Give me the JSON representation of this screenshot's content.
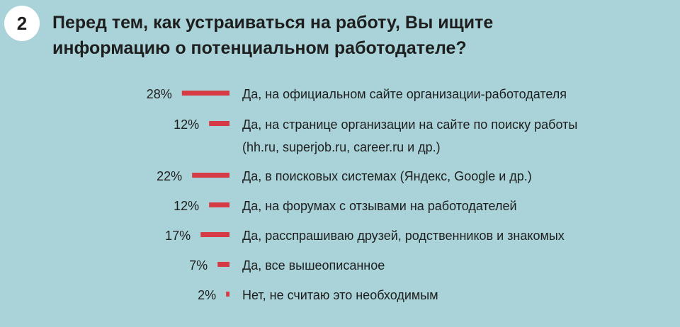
{
  "question_number": "2",
  "title_lines": [
    "Перед тем, как устраиваться на работу, Вы ищите",
    "информацию о потенциальном работодателе?"
  ],
  "colors": {
    "background": "#a9d3d8",
    "bar": "#d63a44",
    "badge": "#ffffff"
  },
  "chart_data": {
    "type": "bar",
    "orientation": "horizontal",
    "unit": "%",
    "categories": [
      [
        "Да, на официальном сайте организации-работодателя"
      ],
      [
        "Да, на странице организации на сайте по поиску работы",
        "(hh.ru, superjob.ru, career.ru и др.)"
      ],
      [
        "Да, в поисковых системах (Яндекс, Google и др.)"
      ],
      [
        "Да, на форумах с отзывами на работодателей"
      ],
      [
        "Да, расспрашиваю друзей, родственников и знакомых"
      ],
      [
        "Да, все вышеописанное"
      ],
      [
        "Нет, не считаю это необходимым"
      ]
    ],
    "values": [
      28,
      12,
      22,
      12,
      17,
      7,
      2
    ],
    "value_labels": [
      "28%",
      "12%",
      "22%",
      "12%",
      "17%",
      "7%",
      "2%"
    ],
    "bar_color": "#d63a44"
  }
}
